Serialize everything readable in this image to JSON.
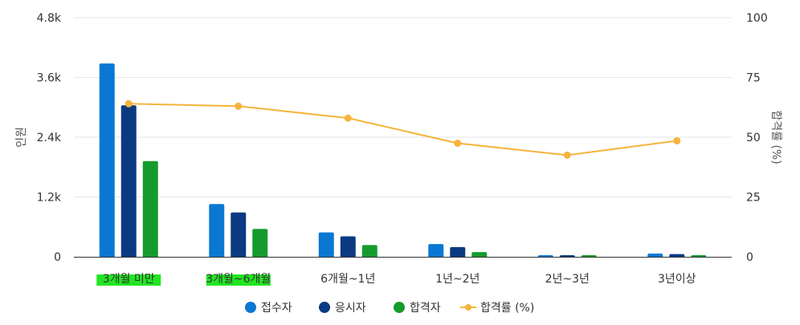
{
  "chart_data": {
    "type": "bar",
    "categories": [
      "3개월 미만",
      "3개월~6개월",
      "6개월~1년",
      "1년~2년",
      "2년~3년",
      "3년이상"
    ],
    "highlighted_categories": [
      "3개월 미만",
      "3개월~6개월"
    ],
    "highlight_color": "#22e622",
    "series": [
      {
        "name": "접수자",
        "type": "bar",
        "color": "#0a78d2",
        "axis": "left",
        "values": [
          3880,
          1060,
          490,
          255,
          30,
          65
        ]
      },
      {
        "name": "응시자",
        "type": "bar",
        "color": "#0b3a82",
        "axis": "left",
        "values": [
          3040,
          890,
          410,
          195,
          22,
          55
        ]
      },
      {
        "name": "합격자",
        "type": "bar",
        "color": "#159b2d",
        "axis": "left",
        "values": [
          1920,
          560,
          235,
          95,
          8,
          25
        ]
      },
      {
        "name": "합격률 (%)",
        "type": "line",
        "color": "#f5b43c",
        "axis": "right",
        "values": [
          64,
          63,
          58,
          47.5,
          42.5,
          48.5
        ]
      }
    ],
    "y_left": {
      "label": "인원",
      "ylim": [
        0,
        4800
      ],
      "ticks": [
        "0",
        "1.2k",
        "2.4k",
        "3.6k",
        "4.8k"
      ],
      "tick_values": [
        0,
        1200,
        2400,
        3600,
        4800
      ]
    },
    "y_right": {
      "label": "합격률 (%)",
      "ylim": [
        0,
        100
      ],
      "ticks": [
        "0",
        "25",
        "50",
        "75",
        "100"
      ],
      "tick_values": [
        0,
        25,
        50,
        75,
        100
      ]
    },
    "grid": true,
    "legend_position": "bottom-center"
  }
}
